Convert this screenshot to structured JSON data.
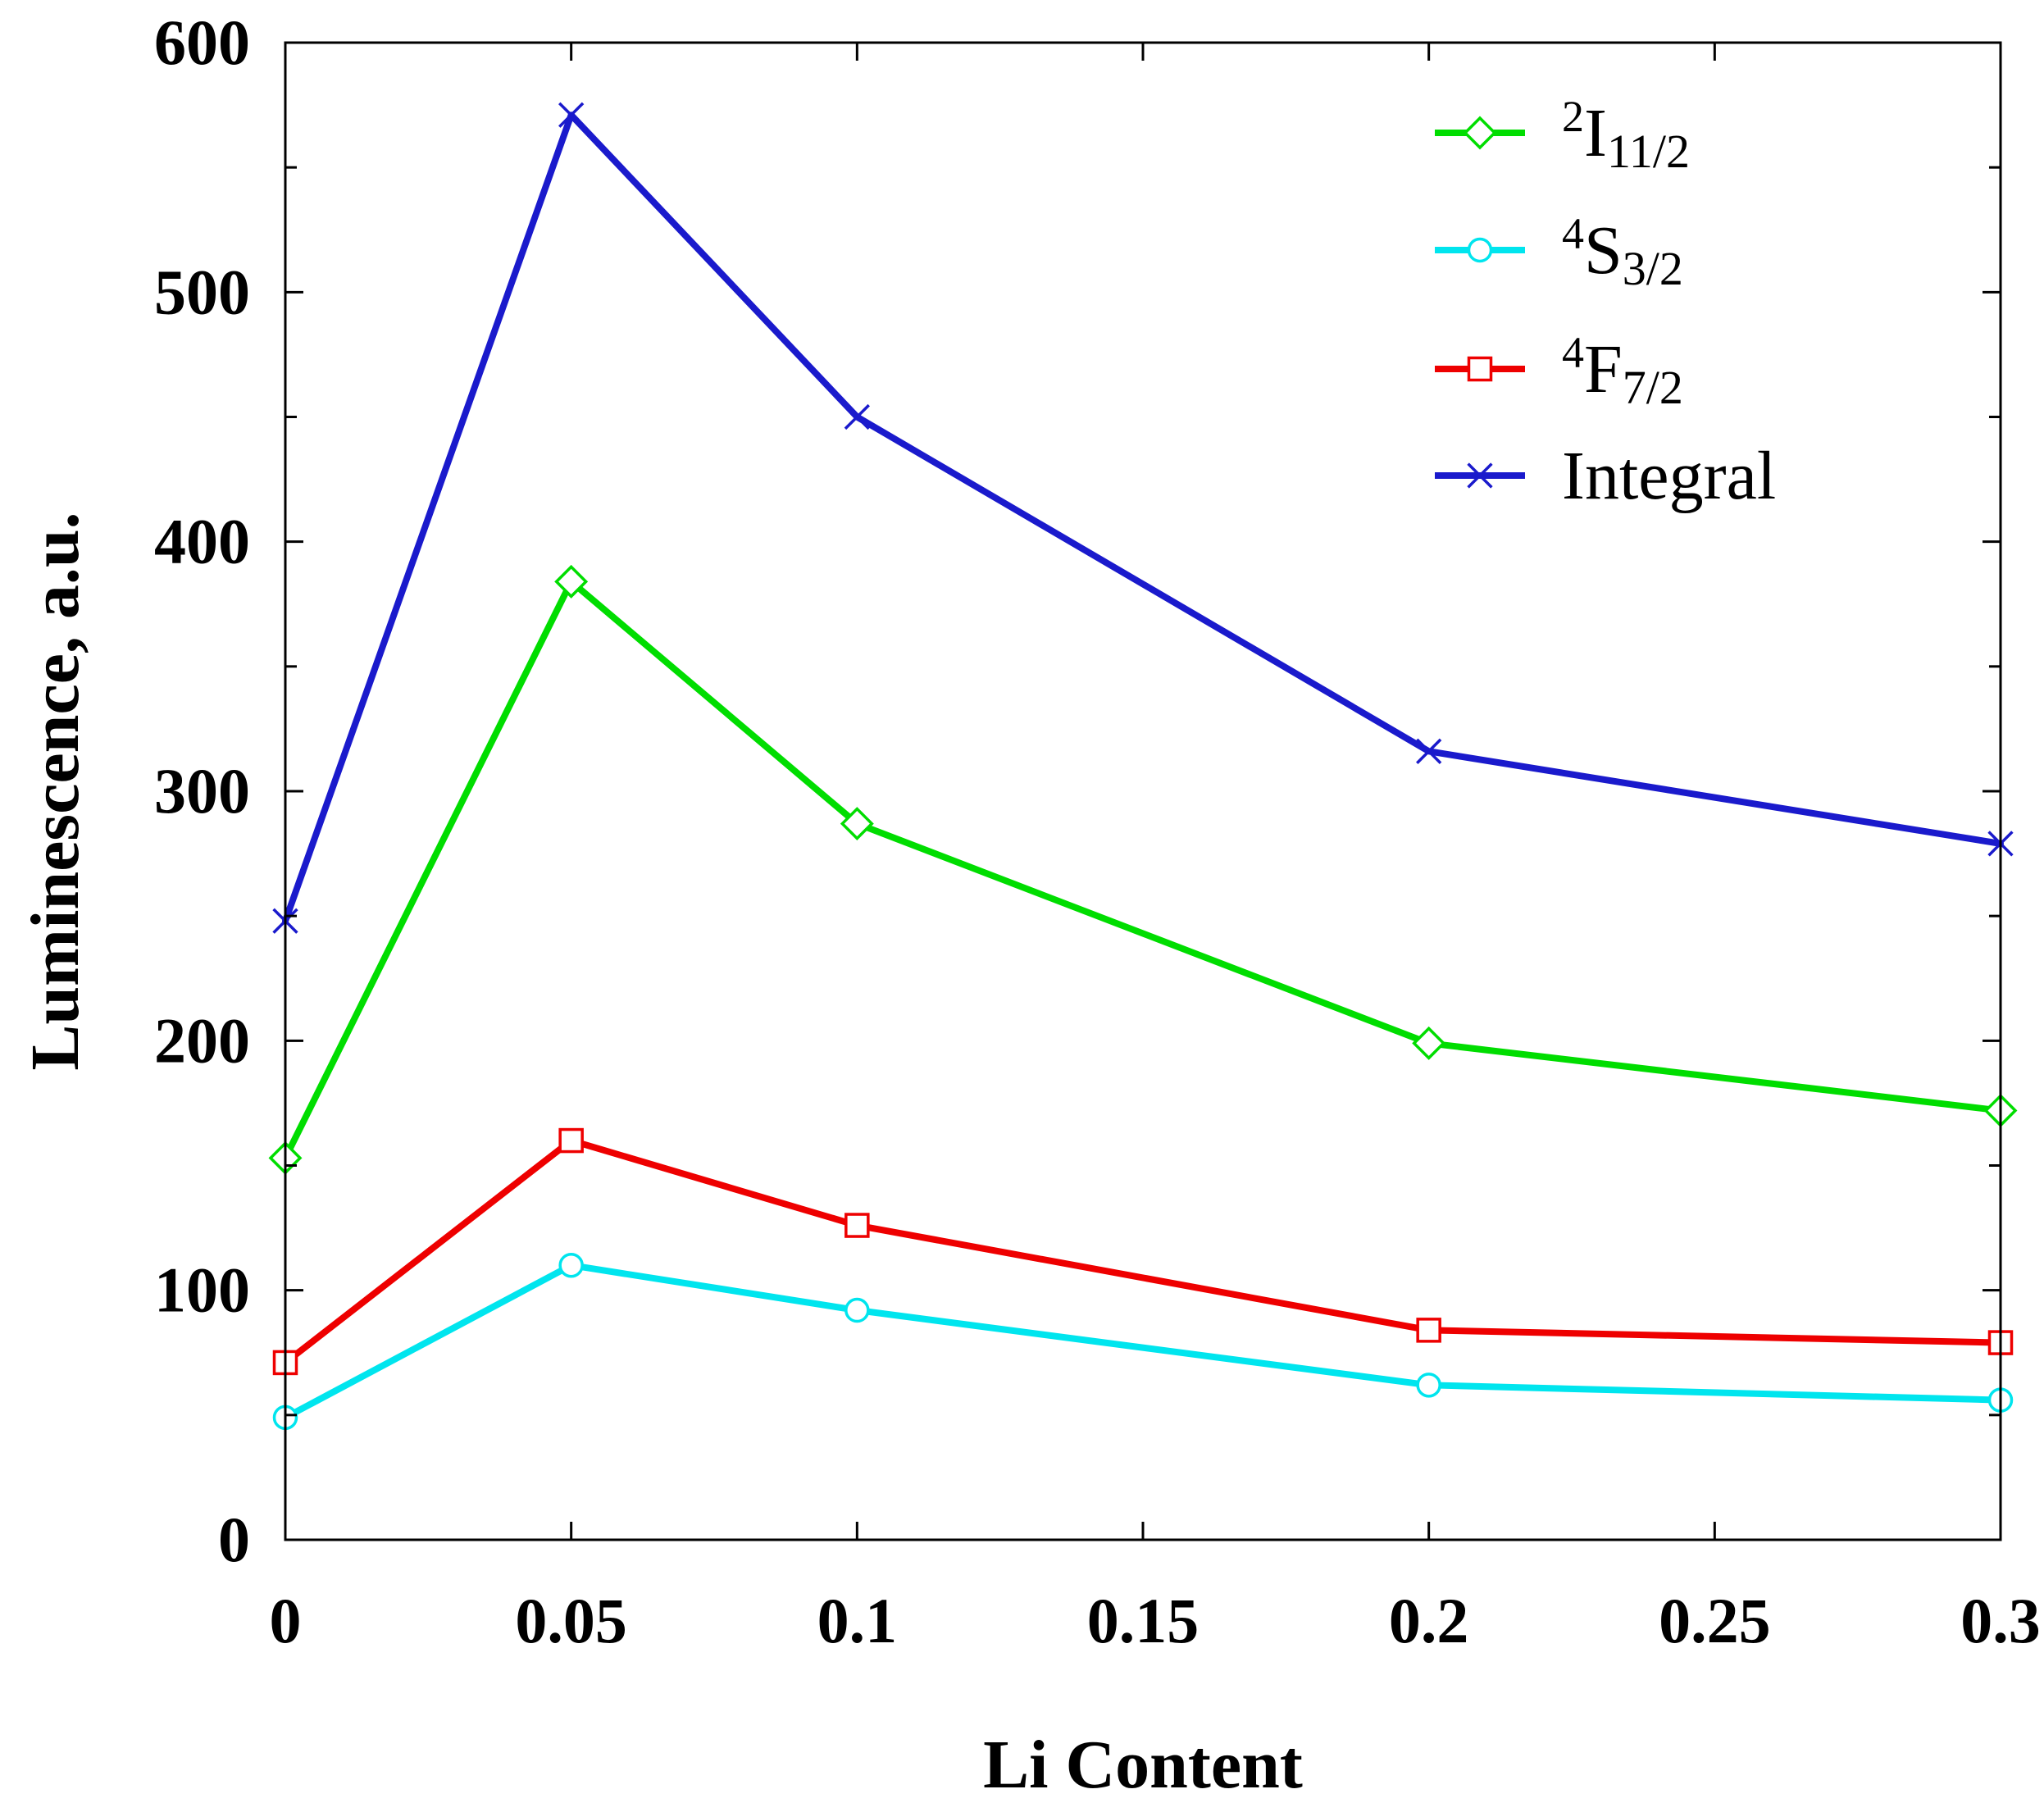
{
  "chart_data": {
    "type": "line",
    "title": "",
    "xlabel": "Li Content",
    "ylabel": "Luminescence, a.u.",
    "xlim": [
      0,
      0.3
    ],
    "ylim": [
      0,
      600
    ],
    "xticks": [
      0,
      0.05,
      0.1,
      0.15,
      0.2,
      0.25,
      0.3
    ],
    "xtick_labels": [
      "0",
      "0.05",
      "0.1",
      "0.15",
      "0.2",
      "0.25",
      "0.3"
    ],
    "yticks": [
      0,
      100,
      200,
      300,
      400,
      500,
      600
    ],
    "ytick_labels": [
      "0",
      "100",
      "200",
      "300",
      "400",
      "500",
      "600"
    ],
    "grid": false,
    "legend_position": "top-right",
    "x": [
      0,
      0.05,
      0.1,
      0.2,
      0.3
    ],
    "series": [
      {
        "name": "²I₁₁/₂",
        "sup": "2",
        "base": "I",
        "sub": "11/2",
        "marker": "diamond",
        "color": "#00dd00",
        "values": [
          153,
          384,
          287,
          199,
          172
        ]
      },
      {
        "name": "⁴S₃/₂",
        "sup": "4",
        "base": "S",
        "sub": "3/2",
        "marker": "circle",
        "color": "#00e5ee",
        "values": [
          49,
          110,
          92,
          62,
          56
        ]
      },
      {
        "name": "⁴F₇/₂",
        "sup": "4",
        "base": "F",
        "sub": "7/2",
        "marker": "square",
        "color": "#ee0000",
        "values": [
          71,
          160,
          126,
          84,
          79
        ]
      },
      {
        "name": "Integral",
        "sup": "",
        "base": "Integral",
        "sub": "",
        "marker": "x",
        "color": "#1a1acc",
        "values": [
          248,
          571,
          450,
          316,
          279
        ]
      }
    ]
  }
}
